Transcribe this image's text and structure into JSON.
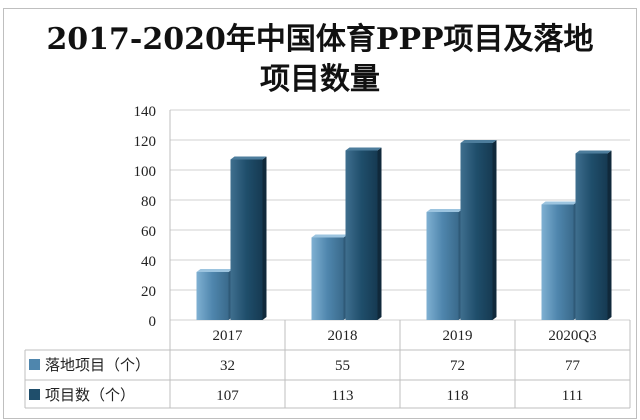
{
  "chart_data": {
    "type": "bar",
    "title_line1": "2017-2020年中国体育PPP项目及落地",
    "title_line2": "项目数量",
    "categories": [
      "2017",
      "2018",
      "2019",
      "2020Q3"
    ],
    "ylim": [
      0,
      140
    ],
    "yticks": [
      "0",
      "20",
      "40",
      "60",
      "80",
      "100",
      "120",
      "140"
    ],
    "grid": true,
    "legend": "data-table-below",
    "series": [
      {
        "name": "落地项目（个）",
        "values": [
          32,
          55,
          72,
          77
        ],
        "color": "#4f86ad"
      },
      {
        "name": "项目数（个）",
        "values": [
          107,
          113,
          118,
          111
        ],
        "color": "#1f4e6b"
      }
    ]
  }
}
